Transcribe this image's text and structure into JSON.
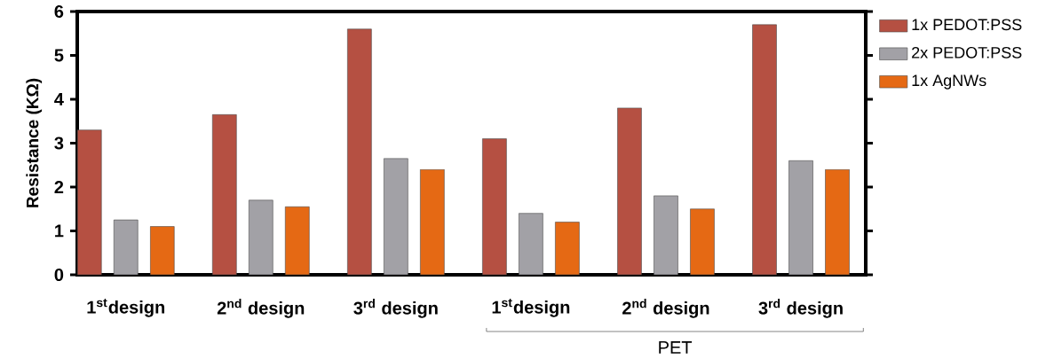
{
  "chart_data": {
    "type": "bar",
    "ylabel": "Resistance (KΩ)",
    "categories": [
      "1$^{st}$design",
      "2$^{nd}$ design",
      "3$^{rd}$ design",
      "1$^{st}$design",
      "2$^{nd}$ design",
      "3$^{rd}$ design"
    ],
    "series": [
      {
        "name": "1x PEDOT:PSS",
        "color": "#b55042",
        "values": [
          3.3,
          3.65,
          5.6,
          3.1,
          3.8,
          5.7
        ]
      },
      {
        "name": "2x PEDOT:PSS",
        "color": "#a2a1a6",
        "values": [
          1.25,
          1.7,
          2.65,
          1.4,
          1.8,
          2.6
        ]
      },
      {
        "name": "1x AgNWs",
        "color": "#e56914",
        "values": [
          1.1,
          1.55,
          2.4,
          1.2,
          1.5,
          2.4
        ]
      }
    ],
    "ylim": [
      0,
      6
    ],
    "yticks": [
      0,
      1,
      2,
      3,
      4,
      5,
      6
    ],
    "legend": "right",
    "grid": false,
    "annotations": [
      "PET"
    ]
  }
}
